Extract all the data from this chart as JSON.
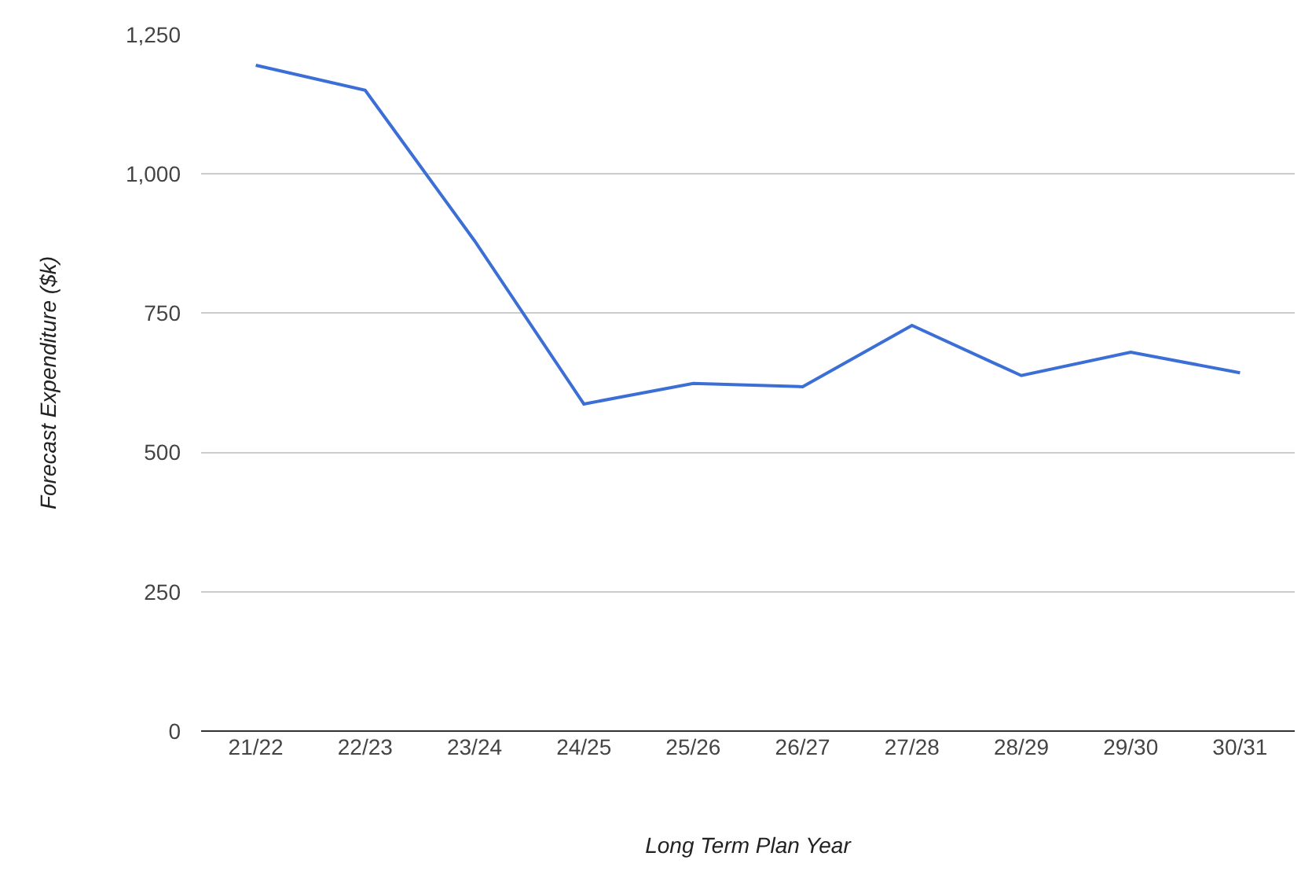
{
  "chart_data": {
    "type": "line",
    "xlabel": "Long Term Plan Year",
    "ylabel": "Forecast Expenditure ($k)",
    "categories": [
      "21/22",
      "22/23",
      "23/24",
      "24/25",
      "25/26",
      "26/27",
      "27/28",
      "28/29",
      "29/30",
      "30/31"
    ],
    "series": [
      {
        "color": "#3c6fd6",
        "values": [
          1195,
          1150,
          880,
          587,
          624,
          618,
          728,
          638,
          680,
          643
        ]
      }
    ],
    "ylim": [
      0,
      1250
    ],
    "yticks": [
      {
        "value": 0,
        "label": "0"
      },
      {
        "value": 250,
        "label": "250"
      },
      {
        "value": 500,
        "label": "500"
      },
      {
        "value": 750,
        "label": "750"
      },
      {
        "value": 1000,
        "label": "1,000"
      },
      {
        "value": 1250,
        "label": "1,250"
      }
    ],
    "grid": "y",
    "marker": "none",
    "line_style": "solid"
  }
}
